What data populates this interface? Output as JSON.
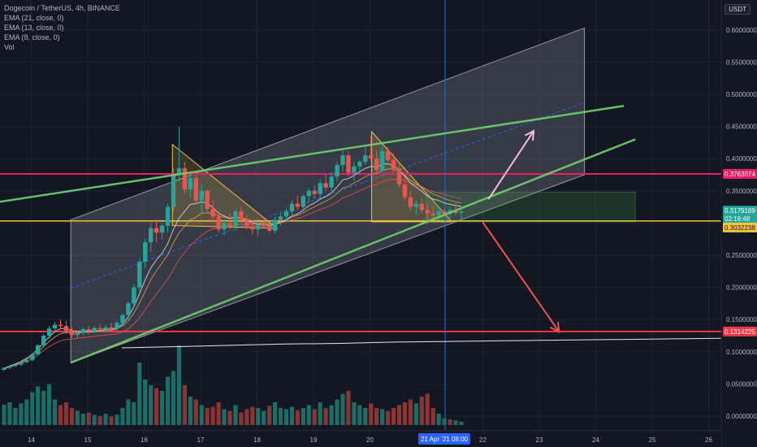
{
  "legend": {
    "symbol": "Dogecoin / TetherUS, 4h, BINANCE",
    "ema21": "EMA (21, close, 0)",
    "ema13": "EMA (13, close, 0)",
    "ema8": "EMA (8, close, 0)",
    "vol": "Vol"
  },
  "currency_label": "USDT",
  "colors": {
    "background": "#131722",
    "up": "#26a69a",
    "down": "#ef5350",
    "magenta_line": "#e91e63",
    "red_line": "#f23645",
    "yellow_line": "#f5c242",
    "green_line": "#6fcf6f",
    "channel_fill": "#787b86",
    "triangle": "#f5c242",
    "crosshair": "#2962ff"
  },
  "chart_data": {
    "type": "candlestick",
    "y_axis": {
      "min": 0,
      "max": 0.6,
      "ticks": [
        "0.0000000",
        "0.0500000",
        "0.1000000",
        "0.1500000",
        "0.2000000",
        "0.2500000",
        "0.3000000",
        "0.3500000",
        "0.4000000",
        "0.4500000",
        "0.5000000",
        "0.5500000",
        "0.6000000"
      ]
    },
    "x_axis": {
      "ticks": [
        "14",
        "15",
        "16",
        "17",
        "18",
        "19",
        "20",
        "22",
        "23",
        "24",
        "25",
        "26"
      ],
      "highlight_label": "21 Apr '21",
      "highlight_time": "08:00"
    },
    "price_labels": {
      "magenta": "0.3763074",
      "current": "0.3179189",
      "countdown": "02:16:48",
      "yellow": "0.3032238",
      "red": "0.1314225"
    },
    "horizontal_levels": {
      "magenta": 0.3763074,
      "yellow": 0.3032238,
      "red": 0.1314225
    },
    "candles": [
      [
        0.072,
        0.076,
        0.07,
        0.075
      ],
      [
        0.075,
        0.079,
        0.073,
        0.078
      ],
      [
        0.078,
        0.081,
        0.076,
        0.08
      ],
      [
        0.08,
        0.085,
        0.078,
        0.084
      ],
      [
        0.084,
        0.088,
        0.082,
        0.087
      ],
      [
        0.087,
        0.098,
        0.085,
        0.096
      ],
      [
        0.096,
        0.112,
        0.094,
        0.11
      ],
      [
        0.11,
        0.128,
        0.106,
        0.125
      ],
      [
        0.125,
        0.14,
        0.12,
        0.136
      ],
      [
        0.136,
        0.146,
        0.13,
        0.142
      ],
      [
        0.142,
        0.15,
        0.135,
        0.14
      ],
      [
        0.14,
        0.148,
        0.128,
        0.132
      ],
      [
        0.132,
        0.138,
        0.122,
        0.126
      ],
      [
        0.126,
        0.134,
        0.12,
        0.13
      ],
      [
        0.13,
        0.138,
        0.126,
        0.135
      ],
      [
        0.135,
        0.14,
        0.128,
        0.132
      ],
      [
        0.132,
        0.14,
        0.128,
        0.137
      ],
      [
        0.137,
        0.143,
        0.131,
        0.135
      ],
      [
        0.135,
        0.142,
        0.13,
        0.138
      ],
      [
        0.138,
        0.145,
        0.133,
        0.136
      ],
      [
        0.136,
        0.148,
        0.132,
        0.145
      ],
      [
        0.145,
        0.16,
        0.14,
        0.157
      ],
      [
        0.157,
        0.178,
        0.15,
        0.175
      ],
      [
        0.175,
        0.205,
        0.168,
        0.2
      ],
      [
        0.2,
        0.245,
        0.195,
        0.24
      ],
      [
        0.24,
        0.275,
        0.23,
        0.27
      ],
      [
        0.27,
        0.3,
        0.255,
        0.292
      ],
      [
        0.292,
        0.305,
        0.27,
        0.285
      ],
      [
        0.285,
        0.3,
        0.275,
        0.296
      ],
      [
        0.296,
        0.33,
        0.285,
        0.325
      ],
      [
        0.325,
        0.385,
        0.318,
        0.375
      ],
      [
        0.375,
        0.45,
        0.365,
        0.385
      ],
      [
        0.385,
        0.395,
        0.345,
        0.352
      ],
      [
        0.352,
        0.38,
        0.34,
        0.37
      ],
      [
        0.37,
        0.375,
        0.33,
        0.335
      ],
      [
        0.335,
        0.36,
        0.315,
        0.35
      ],
      [
        0.35,
        0.352,
        0.318,
        0.322
      ],
      [
        0.322,
        0.335,
        0.3,
        0.31
      ],
      [
        0.31,
        0.318,
        0.285,
        0.29
      ],
      [
        0.29,
        0.305,
        0.28,
        0.3
      ],
      [
        0.3,
        0.315,
        0.29,
        0.295
      ],
      [
        0.295,
        0.322,
        0.288,
        0.318
      ],
      [
        0.318,
        0.325,
        0.3,
        0.305
      ],
      [
        0.305,
        0.312,
        0.29,
        0.295
      ],
      [
        0.295,
        0.305,
        0.282,
        0.29
      ],
      [
        0.29,
        0.3,
        0.28,
        0.298
      ],
      [
        0.298,
        0.308,
        0.29,
        0.295
      ],
      [
        0.295,
        0.3,
        0.285,
        0.288
      ],
      [
        0.288,
        0.31,
        0.284,
        0.305
      ],
      [
        0.305,
        0.315,
        0.296,
        0.31
      ],
      [
        0.31,
        0.322,
        0.302,
        0.318
      ],
      [
        0.318,
        0.335,
        0.31,
        0.33
      ],
      [
        0.33,
        0.342,
        0.32,
        0.325
      ],
      [
        0.325,
        0.345,
        0.318,
        0.342
      ],
      [
        0.342,
        0.355,
        0.332,
        0.35
      ],
      [
        0.35,
        0.358,
        0.338,
        0.345
      ],
      [
        0.345,
        0.368,
        0.338,
        0.362
      ],
      [
        0.362,
        0.375,
        0.35,
        0.355
      ],
      [
        0.355,
        0.378,
        0.35,
        0.372
      ],
      [
        0.372,
        0.395,
        0.365,
        0.39
      ],
      [
        0.39,
        0.412,
        0.38,
        0.405
      ],
      [
        0.405,
        0.412,
        0.372,
        0.378
      ],
      [
        0.378,
        0.395,
        0.365,
        0.388
      ],
      [
        0.388,
        0.398,
        0.375,
        0.395
      ],
      [
        0.395,
        0.42,
        0.39,
        0.405
      ],
      [
        0.405,
        0.435,
        0.395,
        0.4
      ],
      [
        0.4,
        0.412,
        0.375,
        0.382
      ],
      [
        0.382,
        0.42,
        0.378,
        0.412
      ],
      [
        0.412,
        0.418,
        0.395,
        0.398
      ],
      [
        0.398,
        0.408,
        0.38,
        0.385
      ],
      [
        0.385,
        0.392,
        0.355,
        0.36
      ],
      [
        0.36,
        0.372,
        0.335,
        0.34
      ],
      [
        0.34,
        0.35,
        0.318,
        0.325
      ],
      [
        0.325,
        0.335,
        0.312,
        0.33
      ],
      [
        0.33,
        0.338,
        0.315,
        0.32
      ],
      [
        0.32,
        0.328,
        0.298,
        0.315
      ],
      [
        0.315,
        0.325,
        0.305,
        0.312
      ],
      [
        0.312,
        0.322,
        0.305,
        0.318
      ],
      [
        0.318,
        0.322,
        0.31,
        0.314
      ],
      [
        0.314,
        0.325,
        0.308,
        0.32
      ],
      [
        0.32,
        0.33,
        0.312,
        0.316
      ],
      [
        0.316,
        0.322,
        0.305,
        0.318
      ]
    ],
    "ema_series": [
      {
        "color": "#ef5350",
        "values": [
          0.074,
          0.076,
          0.079,
          0.082,
          0.085,
          0.089,
          0.095,
          0.102,
          0.108,
          0.113,
          0.117,
          0.119,
          0.12,
          0.121,
          0.122,
          0.123,
          0.124,
          0.125,
          0.126,
          0.127,
          0.128,
          0.131,
          0.136,
          0.143,
          0.153,
          0.165,
          0.178,
          0.19,
          0.201,
          0.213,
          0.228,
          0.243,
          0.254,
          0.265,
          0.273,
          0.281,
          0.287,
          0.291,
          0.293,
          0.294,
          0.295,
          0.297,
          0.298,
          0.298,
          0.298,
          0.298,
          0.298,
          0.298,
          0.299,
          0.3,
          0.302,
          0.305,
          0.307,
          0.31,
          0.314,
          0.317,
          0.321,
          0.324,
          0.328,
          0.333,
          0.339,
          0.342,
          0.346,
          0.35,
          0.354,
          0.358,
          0.36,
          0.364,
          0.367,
          0.368,
          0.368,
          0.366,
          0.362,
          0.359,
          0.356,
          0.352,
          0.349,
          0.347,
          0.344,
          0.342,
          0.34,
          0.338
        ]
      },
      {
        "color": "#e0a458",
        "values": [
          0.074,
          0.077,
          0.08,
          0.084,
          0.088,
          0.093,
          0.1,
          0.108,
          0.116,
          0.123,
          0.128,
          0.13,
          0.129,
          0.129,
          0.13,
          0.13,
          0.131,
          0.132,
          0.133,
          0.133,
          0.136,
          0.14,
          0.148,
          0.16,
          0.176,
          0.194,
          0.212,
          0.226,
          0.238,
          0.251,
          0.269,
          0.285,
          0.295,
          0.305,
          0.309,
          0.315,
          0.316,
          0.315,
          0.311,
          0.309,
          0.307,
          0.309,
          0.308,
          0.306,
          0.303,
          0.302,
          0.301,
          0.299,
          0.3,
          0.302,
          0.305,
          0.309,
          0.312,
          0.316,
          0.321,
          0.325,
          0.33,
          0.334,
          0.339,
          0.346,
          0.354,
          0.357,
          0.362,
          0.367,
          0.372,
          0.376,
          0.377,
          0.382,
          0.384,
          0.384,
          0.38,
          0.374,
          0.366,
          0.361,
          0.356,
          0.35,
          0.345,
          0.342,
          0.338,
          0.335,
          0.333,
          0.331
        ]
      },
      {
        "color": "#e6e6e6",
        "values": [
          0.074,
          0.078,
          0.081,
          0.085,
          0.09,
          0.096,
          0.104,
          0.114,
          0.123,
          0.131,
          0.136,
          0.136,
          0.133,
          0.131,
          0.132,
          0.132,
          0.133,
          0.133,
          0.135,
          0.135,
          0.137,
          0.143,
          0.154,
          0.17,
          0.19,
          0.212,
          0.23,
          0.243,
          0.253,
          0.268,
          0.29,
          0.308,
          0.318,
          0.329,
          0.33,
          0.333,
          0.33,
          0.324,
          0.315,
          0.311,
          0.307,
          0.309,
          0.307,
          0.304,
          0.3,
          0.299,
          0.298,
          0.296,
          0.298,
          0.301,
          0.305,
          0.311,
          0.314,
          0.32,
          0.327,
          0.331,
          0.337,
          0.341,
          0.347,
          0.356,
          0.367,
          0.369,
          0.374,
          0.38,
          0.385,
          0.388,
          0.387,
          0.391,
          0.392,
          0.389,
          0.382,
          0.373,
          0.362,
          0.356,
          0.349,
          0.342,
          0.337,
          0.335,
          0.331,
          0.329,
          0.327,
          0.326
        ]
      }
    ],
    "long_ma": {
      "color": "#e6e6e6",
      "values": [
        0.106,
        0.108,
        0.11,
        0.112,
        0.113,
        0.115,
        0.116,
        0.117,
        0.118,
        0.119,
        0.12,
        0.121
      ]
    },
    "volumes": [
      [
        0.036,
        1
      ],
      [
        0.04,
        1
      ],
      [
        0.03,
        1
      ],
      [
        0.038,
        1
      ],
      [
        0.045,
        1
      ],
      [
        0.058,
        1
      ],
      [
        0.068,
        1
      ],
      [
        0.06,
        1
      ],
      [
        0.072,
        1
      ],
      [
        0.045,
        1
      ],
      [
        0.035,
        0
      ],
      [
        0.04,
        0
      ],
      [
        0.03,
        0
      ],
      [
        0.025,
        1
      ],
      [
        0.02,
        1
      ],
      [
        0.022,
        0
      ],
      [
        0.018,
        1
      ],
      [
        0.016,
        0
      ],
      [
        0.02,
        1
      ],
      [
        0.015,
        0
      ],
      [
        0.018,
        1
      ],
      [
        0.03,
        1
      ],
      [
        0.045,
        1
      ],
      [
        0.04,
        1
      ],
      [
        0.11,
        1
      ],
      [
        0.08,
        1
      ],
      [
        0.07,
        1
      ],
      [
        0.065,
        0
      ],
      [
        0.06,
        1
      ],
      [
        0.085,
        1
      ],
      [
        0.095,
        1
      ],
      [
        0.14,
        1
      ],
      [
        0.07,
        0
      ],
      [
        0.05,
        1
      ],
      [
        0.045,
        0
      ],
      [
        0.035,
        1
      ],
      [
        0.03,
        0
      ],
      [
        0.032,
        0
      ],
      [
        0.04,
        0
      ],
      [
        0.028,
        1
      ],
      [
        0.025,
        0
      ],
      [
        0.035,
        1
      ],
      [
        0.022,
        0
      ],
      [
        0.028,
        0
      ],
      [
        0.032,
        0
      ],
      [
        0.03,
        1
      ],
      [
        0.025,
        1
      ],
      [
        0.034,
        0
      ],
      [
        0.04,
        1
      ],
      [
        0.03,
        1
      ],
      [
        0.028,
        1
      ],
      [
        0.032,
        1
      ],
      [
        0.026,
        0
      ],
      [
        0.03,
        1
      ],
      [
        0.035,
        1
      ],
      [
        0.028,
        0
      ],
      [
        0.04,
        1
      ],
      [
        0.03,
        0
      ],
      [
        0.035,
        1
      ],
      [
        0.045,
        1
      ],
      [
        0.055,
        1
      ],
      [
        0.06,
        0
      ],
      [
        0.04,
        1
      ],
      [
        0.035,
        1
      ],
      [
        0.03,
        1
      ],
      [
        0.038,
        0
      ],
      [
        0.03,
        0
      ],
      [
        0.028,
        1
      ],
      [
        0.025,
        0
      ],
      [
        0.03,
        0
      ],
      [
        0.035,
        0
      ],
      [
        0.04,
        0
      ],
      [
        0.045,
        0
      ],
      [
        0.038,
        1
      ],
      [
        0.05,
        0
      ],
      [
        0.055,
        0
      ],
      [
        0.03,
        0
      ],
      [
        0.02,
        1
      ],
      [
        0.012,
        1
      ],
      [
        0.01,
        0
      ],
      [
        0.008,
        1
      ],
      [
        0.006,
        1
      ]
    ]
  }
}
